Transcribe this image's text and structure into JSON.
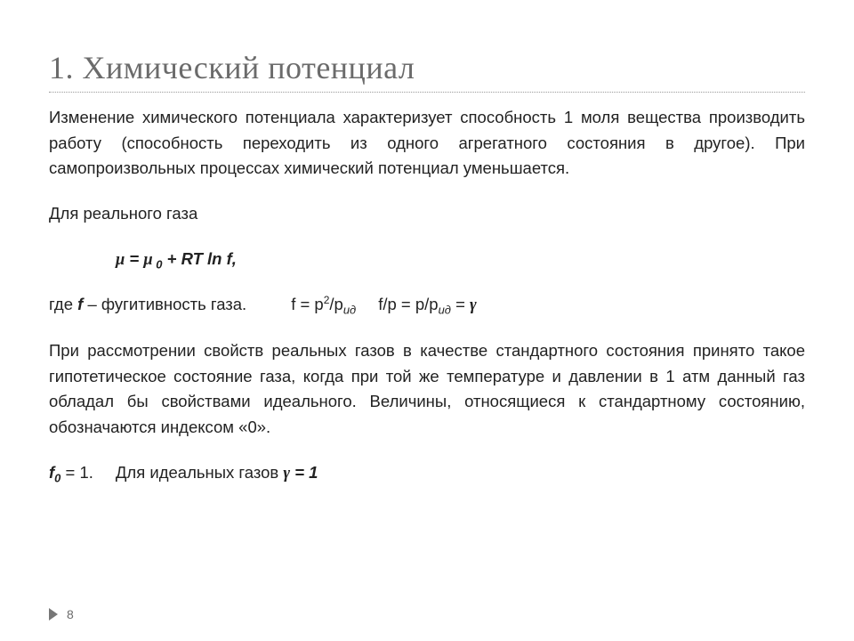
{
  "title": "1. Химический потенциал",
  "paragraphs": {
    "p1": "Изменение химического потенциала характеризует способность 1 моля вещества производить работу (способность переходить из одного агрегатного состояния в другое). При самопроизвольных процессах химический потенциал уменьшается.",
    "p2": "Для реального газа",
    "eq1_mu": "μ",
    "eq1_eq": " = ",
    "eq1_mu0": "μ",
    "eq1_zero": " 0",
    "eq1_rest": " + RT ln f,",
    "p3_prefix": "где ",
    "p3_f": "f",
    "p3_mid": " – фугитивность газа.",
    "p3_eqA_lhs": "f = p",
    "p3_eqA_sup": "2",
    "p3_eqA_slash": "/p",
    "p3_eqA_sub": "ид",
    "p3_eqB": "f/p = p/p",
    "p3_eqB_sub": "ид",
    "p3_eqB_tail": " = ",
    "p3_gamma": "γ",
    "p4": "При рассмотрении свойств реальных газов в качестве стандартного состояния принято такое гипотетическое состояние газа, когда при той же температуре и давлении в 1 атм данный газ обладал бы свойствами идеального. Величины, относящиеся к стандартному состоянию, обозначаются индексом «0».",
    "p5_bold": "f",
    "p5_sub0": "0",
    "p5_eq1": " = 1.",
    "p5_text": "Для идеальных газов ",
    "p5_gamma": "γ",
    "p5_eqone": " = 1"
  },
  "page_number": "8",
  "colors": {
    "title": "#6b6b6b",
    "rule": "#9a9a9a",
    "text": "#222222",
    "arrow": "#777777"
  },
  "fonts": {
    "title_family": "Times New Roman",
    "title_size_pt": 28,
    "body_family": "Arial",
    "body_size_pt": 14
  }
}
